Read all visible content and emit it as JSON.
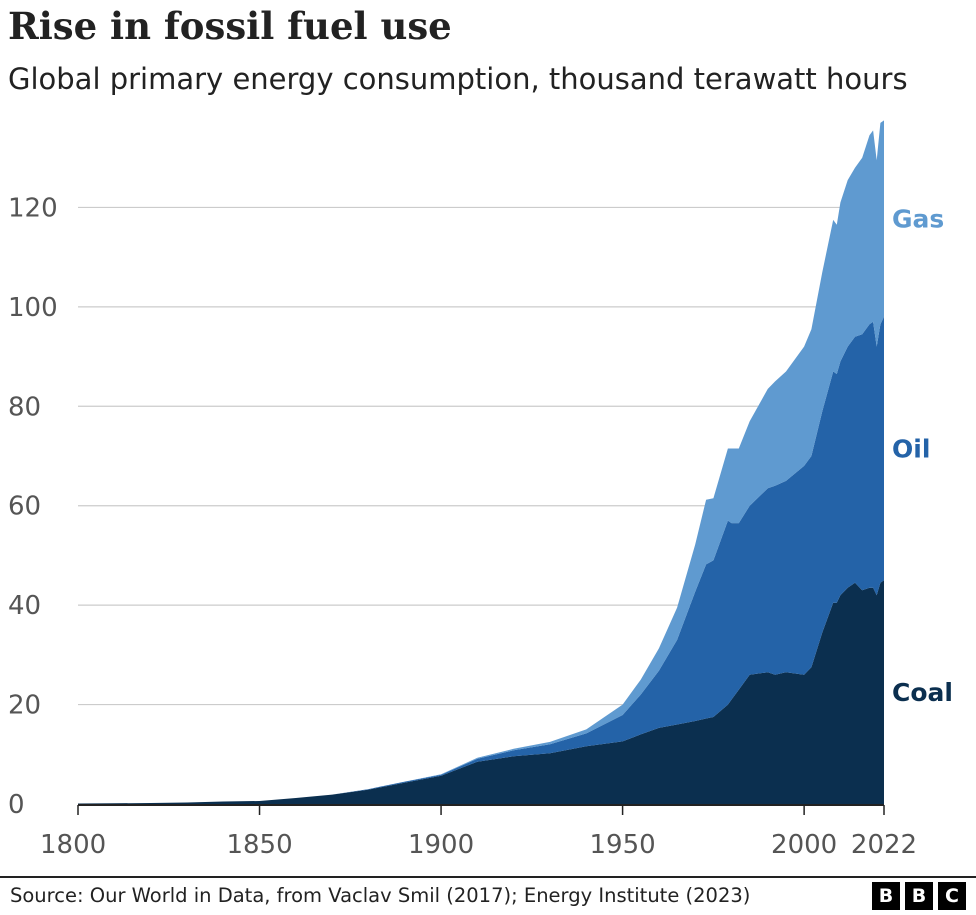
{
  "chart_data": {
    "type": "area",
    "stacked": true,
    "title": "Rise in fossil fuel use",
    "subtitle": "Global primary energy consumption, thousand terawatt hours",
    "xlabel": "",
    "ylabel": "",
    "xlim": [
      1800,
      2022
    ],
    "ylim": [
      0,
      140
    ],
    "x_ticks": [
      1800,
      1850,
      1900,
      1950,
      2000,
      2022
    ],
    "y_ticks": [
      0,
      20,
      40,
      60,
      80,
      100,
      120
    ],
    "grid": "horizontal",
    "legend": "direct labels at right",
    "x": [
      1800,
      1810,
      1820,
      1830,
      1840,
      1850,
      1860,
      1870,
      1880,
      1890,
      1900,
      1910,
      1920,
      1930,
      1940,
      1950,
      1955,
      1960,
      1965,
      1970,
      1973,
      1975,
      1979,
      1980,
      1982,
      1985,
      1990,
      1992,
      1995,
      2000,
      2002,
      2005,
      2008,
      2009,
      2010,
      2012,
      2014,
      2016,
      2018,
      2019,
      2020,
      2021,
      2022
    ],
    "series": [
      {
        "name": "Coal",
        "color": "#0b2f4f",
        "values": [
          0.1,
          0.15,
          0.2,
          0.3,
          0.5,
          0.6,
          1.2,
          1.9,
          2.9,
          4.3,
          5.7,
          8.5,
          9.6,
          10.2,
          11.6,
          12.6,
          14.0,
          15.3,
          16.0,
          16.7,
          17.2,
          17.5,
          20.0,
          21.0,
          23.0,
          26.0,
          26.5,
          26.0,
          26.5,
          26.0,
          27.5,
          34.5,
          40.5,
          40.5,
          42.0,
          43.5,
          44.5,
          43.0,
          43.5,
          43.5,
          42.0,
          44.5,
          45.0
        ]
      },
      {
        "name": "Oil",
        "color": "#2463a8",
        "values": [
          0,
          0,
          0,
          0,
          0,
          0,
          0,
          0,
          0.1,
          0.2,
          0.2,
          0.6,
          1.2,
          1.8,
          2.6,
          5.3,
          8.0,
          11.5,
          17.0,
          26.0,
          31.0,
          31.5,
          37.0,
          35.5,
          33.5,
          34.0,
          37.0,
          38.0,
          38.5,
          42.0,
          42.5,
          44.5,
          46.5,
          46.0,
          47.0,
          48.5,
          49.5,
          51.5,
          53.0,
          53.5,
          50.0,
          52.0,
          53.0
        ]
      },
      {
        "name": "Gas",
        "color": "#5f9ad0",
        "values": [
          0,
          0,
          0,
          0,
          0,
          0,
          0,
          0,
          0,
          0,
          0.1,
          0.2,
          0.3,
          0.5,
          0.8,
          2.1,
          3.0,
          4.5,
          6.5,
          9.5,
          13.0,
          12.5,
          14.5,
          15.0,
          15.0,
          17.0,
          20.0,
          21.0,
          22.0,
          24.0,
          25.5,
          28.0,
          30.5,
          30.0,
          32.0,
          33.5,
          34.0,
          35.5,
          38.0,
          38.5,
          37.5,
          40.5,
          39.5
        ]
      }
    ]
  },
  "footer": {
    "source": "Source: Our World in Data, from Vaclav Smil (2017); Energy Institute (2023)",
    "logo_letters": [
      "B",
      "B",
      "C"
    ]
  }
}
